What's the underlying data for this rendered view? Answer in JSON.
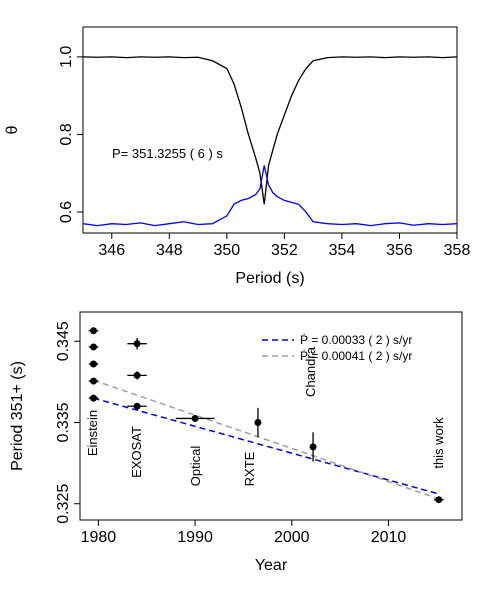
{
  "chart_data": [
    {
      "type": "line",
      "x_label": "Period (s)",
      "y_label": "θ",
      "annotation": "P=  351.3255 ( 6 ) s",
      "x": [
        345,
        345.5,
        346,
        346.5,
        347,
        347.5,
        348,
        348.5,
        349,
        349.5,
        350,
        350.25,
        350.5,
        350.75,
        351,
        351.15,
        351.3,
        351.45,
        351.6,
        351.75,
        352,
        352.25,
        352.5,
        352.75,
        353,
        353.5,
        354,
        354.5,
        355,
        355.5,
        356,
        356.5,
        357,
        357.5,
        358
      ],
      "series": [
        {
          "color": "#000000",
          "values": [
            1.0,
            0.999,
            1.0,
            0.998,
            1.0,
            0.999,
            1.0,
            0.998,
            0.999,
            0.99,
            0.97,
            0.93,
            0.87,
            0.8,
            0.74,
            0.7,
            0.62,
            0.72,
            0.76,
            0.8,
            0.85,
            0.9,
            0.94,
            0.97,
            0.99,
            0.998,
            1.0,
            0.999,
            1.0,
            0.998,
            1.0,
            0.999,
            1.0,
            0.998,
            1.0
          ]
        },
        {
          "color": "#0000ff",
          "values": [
            0.57,
            0.565,
            0.57,
            0.568,
            0.572,
            0.565,
            0.57,
            0.575,
            0.568,
            0.57,
            0.59,
            0.62,
            0.63,
            0.635,
            0.645,
            0.66,
            0.72,
            0.67,
            0.65,
            0.64,
            0.63,
            0.625,
            0.62,
            0.6,
            0.575,
            0.57,
            0.568,
            0.57,
            0.565,
            0.57,
            0.572,
            0.566,
            0.57,
            0.568,
            0.57
          ]
        }
      ],
      "xlim": [
        345,
        358
      ],
      "xticks": [
        346,
        348,
        350,
        352,
        354,
        356,
        358
      ],
      "ylim": [
        0.546,
        1.077
      ],
      "yticks": [
        0.6,
        0.8,
        {
          "value": 1,
          "label": "1.0"
        }
      ]
    },
    {
      "type": "scatter",
      "x_label": "Year",
      "y_label": "Period 351+ (s)",
      "annotations": [
        "Einstein",
        "EXOSAT",
        "Optical",
        "RXTE",
        "Chandra",
        "this work"
      ],
      "points": {
        "color": "#000000",
        "x": [
          1979.5,
          1979.5,
          1979.5,
          1979.5,
          1979.5,
          1984,
          1984,
          1984,
          1990,
          1996.5,
          2002.2,
          2015.2
        ],
        "values": [
          0.3463,
          0.3443,
          0.3422,
          0.3401,
          0.338,
          0.3447,
          0.3408,
          0.337,
          0.3355,
          0.335,
          0.332,
          0.3255
        ],
        "xerr": [
          0.5,
          0.5,
          0.5,
          0.5,
          0.5,
          1,
          1,
          1,
          2,
          0,
          0,
          0.5
        ],
        "yerr": [
          0.0002,
          0.0002,
          0.0002,
          0.0002,
          0.0002,
          0.0007,
          0.0005,
          0.0004,
          0.0002,
          0.0018,
          0.0018,
          0.0004
        ]
      },
      "fits": [
        {
          "name": "Ṗ = 0.00033 ( 2 )  s/yr",
          "color": "#0000dd",
          "x": [
            1979.5,
            2015.2
          ],
          "values": [
            0.338,
            0.3262
          ]
        },
        {
          "name": "Ṗ = 0.00041 ( 2 )  s/yr",
          "color": "#a0a0a0",
          "x": [
            1979.5,
            2015.2
          ],
          "values": [
            0.3402,
            0.3256
          ]
        }
      ],
      "legend": "top-right",
      "xlim": [
        1978.1,
        2017.6
      ],
      "xticks": [
        1980,
        1990,
        2000,
        2010
      ],
      "ylim": [
        0.323,
        0.3486
      ],
      "yticks": [
        0.325,
        0.335,
        0.345
      ]
    }
  ]
}
